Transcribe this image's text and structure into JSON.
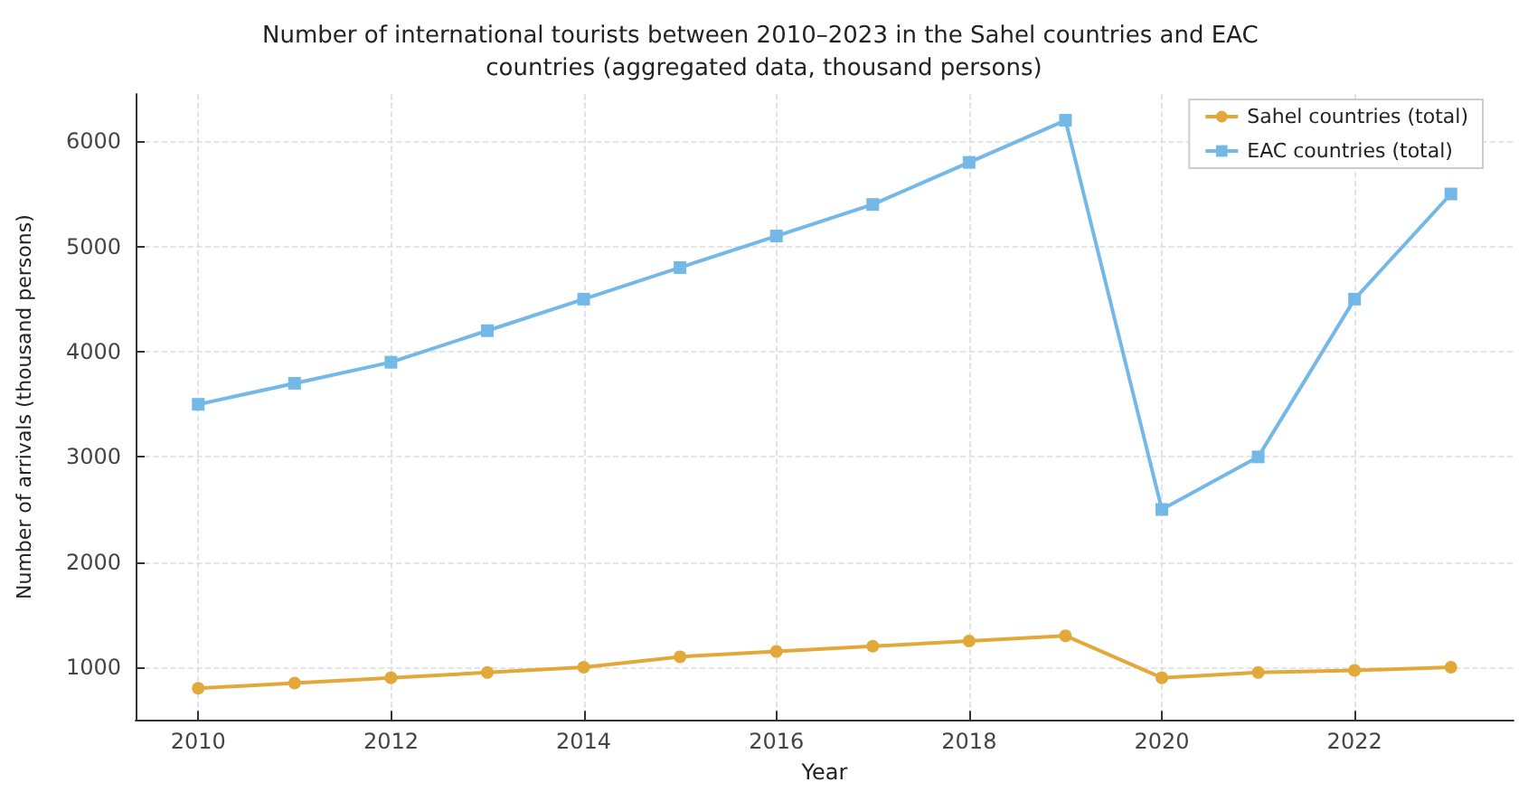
{
  "chart_data": {
    "type": "line",
    "title": "Number of international tourists between 2010–2023 in the Sahel countries and EAC countries (aggregated data, thousand persons)",
    "xlabel": "Year",
    "ylabel": "Number of arrivals (thousand persons)",
    "x": [
      2010,
      2011,
      2012,
      2013,
      2014,
      2015,
      2016,
      2017,
      2018,
      2019,
      2020,
      2021,
      2022,
      2023
    ],
    "series": [
      {
        "name": "Sahel countries (total)",
        "color": "#e3a83a",
        "marker": "circle",
        "values": [
          800,
          850,
          900,
          950,
          1000,
          1100,
          1150,
          1200,
          1250,
          1300,
          900,
          950,
          970,
          1000
        ]
      },
      {
        "name": "EAC countries (total)",
        "color": "#74b8e8",
        "marker": "square",
        "values": [
          3500,
          3700,
          3900,
          4200,
          4500,
          4800,
          5100,
          5400,
          5800,
          6200,
          2500,
          3000,
          4500,
          5500
        ]
      }
    ],
    "xlim": [
      2009.35,
      2023.65
    ],
    "xticks": [
      2010,
      2012,
      2014,
      2016,
      2018,
      2020,
      2022
    ],
    "ylim": [
      500,
      6450
    ],
    "yticks": [
      1000,
      2000,
      3000,
      4000,
      5000,
      6000
    ],
    "grid": true,
    "legend": "top right",
    "line_style": "solid"
  }
}
